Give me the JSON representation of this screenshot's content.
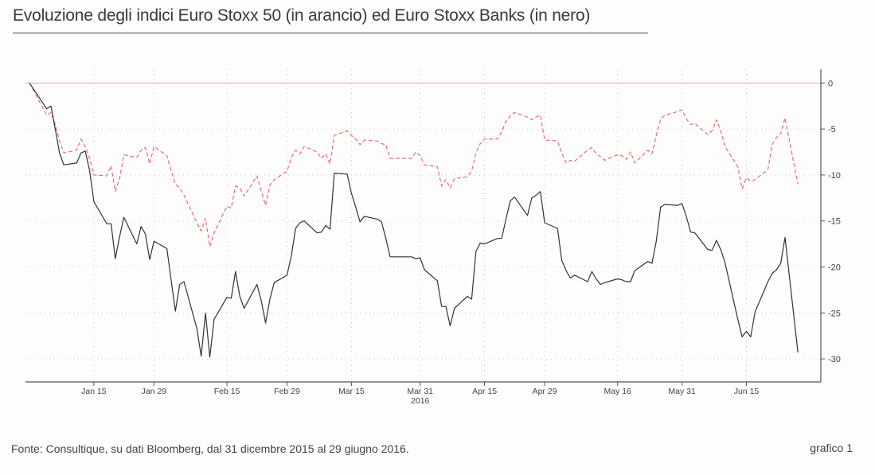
{
  "title": "Evoluzione degli indici Euro Stoxx 50 (in arancio) ed Euro Stoxx Banks (in nero)",
  "source": "Fonte: Consultique, su dati Bloomberg, dal 31 dicembre 2015 al 29 giugno 2016.",
  "figure_number": "grafico 1",
  "colors": {
    "stoxx50": "#e8607a",
    "banks": "#333333",
    "axis": "#555555",
    "grid": "#bbbbbb"
  },
  "chart_data": {
    "type": "line",
    "title": "Evoluzione degli indici Euro Stoxx 50 (in arancio) ed Euro Stoxx Banks (in nero)",
    "x_ticks": [
      "Jan 15",
      "Jan 29",
      "Feb 15",
      "Feb 29",
      "Mar 15",
      "Mar 31",
      "Apr 15",
      "Apr 29",
      "May 16",
      "May 31",
      "Jun 15"
    ],
    "x_year_label": "2016",
    "y_ticks": [
      0,
      -5,
      -10,
      -15,
      -20,
      -25,
      -30
    ],
    "ylim": [
      -32.5,
      1.5
    ],
    "y_axis_side": "right",
    "grid": true,
    "x_range": [
      "2015-12-31",
      "2016-06-29"
    ],
    "series": [
      {
        "key": "stoxx50",
        "line_style": "dashed",
        "points": [
          [
            "2015-12-31",
            0
          ],
          [
            "2016-01-04",
            -3.5
          ],
          [
            "2016-01-05",
            -3.2
          ],
          [
            "2016-01-06",
            -4.5
          ],
          [
            "2016-01-07",
            -6.3
          ],
          [
            "2016-01-08",
            -7.6
          ],
          [
            "2016-01-11",
            -7.3
          ],
          [
            "2016-01-12",
            -6.1
          ],
          [
            "2016-01-13",
            -6.9
          ],
          [
            "2016-01-14",
            -8.2
          ],
          [
            "2016-01-15",
            -10.0
          ],
          [
            "2016-01-18",
            -10.1
          ],
          [
            "2016-01-19",
            -9.0
          ],
          [
            "2016-01-20",
            -11.8
          ],
          [
            "2016-01-21",
            -10.4
          ],
          [
            "2016-01-22",
            -7.8
          ],
          [
            "2016-01-25",
            -8.1
          ],
          [
            "2016-01-26",
            -7.3
          ],
          [
            "2016-01-27",
            -7.0
          ],
          [
            "2016-01-28",
            -8.8
          ],
          [
            "2016-01-29",
            -6.9
          ],
          [
            "2016-02-01",
            -7.9
          ],
          [
            "2016-02-02",
            -9.5
          ],
          [
            "2016-02-03",
            -11.0
          ],
          [
            "2016-02-04",
            -11.4
          ],
          [
            "2016-02-05",
            -12.2
          ],
          [
            "2016-02-08",
            -15.2
          ],
          [
            "2016-02-09",
            -16.1
          ],
          [
            "2016-02-10",
            -14.7
          ],
          [
            "2016-02-11",
            -17.8
          ],
          [
            "2016-02-12",
            -16.3
          ],
          [
            "2016-02-15",
            -13.4
          ],
          [
            "2016-02-16",
            -13.6
          ],
          [
            "2016-02-17",
            -11.2
          ],
          [
            "2016-02-18",
            -11.4
          ],
          [
            "2016-02-19",
            -12.3
          ],
          [
            "2016-02-22",
            -10.1
          ],
          [
            "2016-02-23",
            -11.8
          ],
          [
            "2016-02-24",
            -13.3
          ],
          [
            "2016-02-25",
            -11.1
          ],
          [
            "2016-02-26",
            -10.5
          ],
          [
            "2016-02-29",
            -9.6
          ],
          [
            "2016-03-01",
            -8.1
          ],
          [
            "2016-03-02",
            -7.3
          ],
          [
            "2016-03-03",
            -7.7
          ],
          [
            "2016-03-04",
            -6.9
          ],
          [
            "2016-03-07",
            -7.5
          ],
          [
            "2016-03-08",
            -8.2
          ],
          [
            "2016-03-09",
            -7.7
          ],
          [
            "2016-03-10",
            -8.8
          ],
          [
            "2016-03-11",
            -5.7
          ],
          [
            "2016-03-14",
            -5.2
          ],
          [
            "2016-03-15",
            -5.7
          ],
          [
            "2016-03-16",
            -6.1
          ],
          [
            "2016-03-17",
            -6.7
          ],
          [
            "2016-03-18",
            -6.2
          ],
          [
            "2016-03-21",
            -6.3
          ],
          [
            "2016-03-22",
            -6.6
          ],
          [
            "2016-03-23",
            -6.7
          ],
          [
            "2016-03-24",
            -8.2
          ],
          [
            "2016-03-29",
            -8.2
          ],
          [
            "2016-03-30",
            -7.5
          ],
          [
            "2016-03-31",
            -7.9
          ],
          [
            "2016-04-01",
            -8.9
          ],
          [
            "2016-04-04",
            -9.1
          ],
          [
            "2016-04-05",
            -11.2
          ],
          [
            "2016-04-06",
            -10.5
          ],
          [
            "2016-04-07",
            -11.4
          ],
          [
            "2016-04-08",
            -10.4
          ],
          [
            "2016-04-11",
            -10.2
          ],
          [
            "2016-04-12",
            -9.6
          ],
          [
            "2016-04-13",
            -7.6
          ],
          [
            "2016-04-14",
            -6.6
          ],
          [
            "2016-04-15",
            -6.1
          ],
          [
            "2016-04-18",
            -6.1
          ],
          [
            "2016-04-19",
            -5.3
          ],
          [
            "2016-04-20",
            -4.2
          ],
          [
            "2016-04-21",
            -3.6
          ],
          [
            "2016-04-22",
            -3.2
          ],
          [
            "2016-04-25",
            -3.7
          ],
          [
            "2016-04-26",
            -4.0
          ],
          [
            "2016-04-27",
            -3.7
          ],
          [
            "2016-04-28",
            -3.5
          ],
          [
            "2016-04-29",
            -6.2
          ],
          [
            "2016-05-02",
            -6.3
          ],
          [
            "2016-05-03",
            -7.6
          ],
          [
            "2016-05-04",
            -8.7
          ],
          [
            "2016-05-05",
            -8.4
          ],
          [
            "2016-05-06",
            -8.5
          ],
          [
            "2016-05-09",
            -7.3
          ],
          [
            "2016-05-10",
            -7.0
          ],
          [
            "2016-05-11",
            -7.7
          ],
          [
            "2016-05-12",
            -8.0
          ],
          [
            "2016-05-13",
            -8.4
          ],
          [
            "2016-05-16",
            -7.8
          ],
          [
            "2016-05-17",
            -7.9
          ],
          [
            "2016-05-18",
            -8.3
          ],
          [
            "2016-05-19",
            -7.5
          ],
          [
            "2016-05-20",
            -8.7
          ],
          [
            "2016-05-23",
            -7.3
          ],
          [
            "2016-05-24",
            -7.7
          ],
          [
            "2016-05-25",
            -5.7
          ],
          [
            "2016-05-26",
            -3.9
          ],
          [
            "2016-05-27",
            -3.5
          ],
          [
            "2016-05-30",
            -3.1
          ],
          [
            "2016-05-31",
            -2.9
          ],
          [
            "2016-06-01",
            -3.9
          ],
          [
            "2016-06-02",
            -4.5
          ],
          [
            "2016-06-03",
            -4.4
          ],
          [
            "2016-06-06",
            -5.6
          ],
          [
            "2016-06-07",
            -5.2
          ],
          [
            "2016-06-08",
            -4.0
          ],
          [
            "2016-06-09",
            -5.2
          ],
          [
            "2016-06-10",
            -6.9
          ],
          [
            "2016-06-13",
            -9.1
          ],
          [
            "2016-06-14",
            -11.5
          ],
          [
            "2016-06-15",
            -10.3
          ],
          [
            "2016-06-16",
            -10.7
          ],
          [
            "2016-06-17",
            -10.5
          ],
          [
            "2016-06-20",
            -9.4
          ],
          [
            "2016-06-21",
            -6.7
          ],
          [
            "2016-06-22",
            -5.9
          ],
          [
            "2016-06-23",
            -5.5
          ],
          [
            "2016-06-24",
            -3.8
          ],
          [
            "2016-06-27",
            -11.0
          ]
        ]
      },
      {
        "key": "banks",
        "line_style": "solid",
        "points": [
          [
            "2015-12-31",
            0
          ],
          [
            "2016-01-04",
            -2.8
          ],
          [
            "2016-01-05",
            -2.5
          ],
          [
            "2016-01-06",
            -5.0
          ],
          [
            "2016-01-07",
            -7.6
          ],
          [
            "2016-01-08",
            -8.9
          ],
          [
            "2016-01-11",
            -8.7
          ],
          [
            "2016-01-12",
            -7.6
          ],
          [
            "2016-01-13",
            -7.4
          ],
          [
            "2016-01-14",
            -9.5
          ],
          [
            "2016-01-15",
            -12.9
          ],
          [
            "2016-01-18",
            -15.3
          ],
          [
            "2016-01-19",
            -15.3
          ],
          [
            "2016-01-20",
            -19.1
          ],
          [
            "2016-01-21",
            -16.7
          ],
          [
            "2016-01-22",
            -14.6
          ],
          [
            "2016-01-25",
            -17.5
          ],
          [
            "2016-01-26",
            -15.6
          ],
          [
            "2016-01-27",
            -16.4
          ],
          [
            "2016-01-28",
            -19.2
          ],
          [
            "2016-01-29",
            -17.2
          ],
          [
            "2016-02-01",
            -18.0
          ],
          [
            "2016-02-02",
            -21.4
          ],
          [
            "2016-02-03",
            -24.8
          ],
          [
            "2016-02-04",
            -21.9
          ],
          [
            "2016-02-05",
            -21.6
          ],
          [
            "2016-02-08",
            -26.7
          ],
          [
            "2016-02-09",
            -29.7
          ],
          [
            "2016-02-10",
            -25.0
          ],
          [
            "2016-02-11",
            -29.8
          ],
          [
            "2016-02-12",
            -25.7
          ],
          [
            "2016-02-15",
            -23.3
          ],
          [
            "2016-02-16",
            -23.4
          ],
          [
            "2016-02-17",
            -20.5
          ],
          [
            "2016-02-18",
            -23.2
          ],
          [
            "2016-02-19",
            -24.5
          ],
          [
            "2016-02-22",
            -21.9
          ],
          [
            "2016-02-23",
            -23.7
          ],
          [
            "2016-02-24",
            -26.1
          ],
          [
            "2016-02-25",
            -23.5
          ],
          [
            "2016-02-26",
            -21.7
          ],
          [
            "2016-02-29",
            -20.9
          ],
          [
            "2016-03-01",
            -18.8
          ],
          [
            "2016-03-02",
            -15.8
          ],
          [
            "2016-03-03",
            -15.2
          ],
          [
            "2016-03-04",
            -15.0
          ],
          [
            "2016-03-07",
            -16.3
          ],
          [
            "2016-03-08",
            -16.2
          ],
          [
            "2016-03-09",
            -15.5
          ],
          [
            "2016-03-10",
            -15.9
          ],
          [
            "2016-03-11",
            -9.8
          ],
          [
            "2016-03-14",
            -9.9
          ],
          [
            "2016-03-15",
            -12.0
          ],
          [
            "2016-03-16",
            -13.5
          ],
          [
            "2016-03-17",
            -15.1
          ],
          [
            "2016-03-18",
            -14.5
          ],
          [
            "2016-03-21",
            -14.8
          ],
          [
            "2016-03-22",
            -15.1
          ],
          [
            "2016-03-23",
            -16.9
          ],
          [
            "2016-03-24",
            -18.9
          ],
          [
            "2016-03-29",
            -18.9
          ],
          [
            "2016-03-30",
            -19.1
          ],
          [
            "2016-03-31",
            -19.0
          ],
          [
            "2016-04-01",
            -20.3
          ],
          [
            "2016-04-04",
            -21.5
          ],
          [
            "2016-04-05",
            -24.3
          ],
          [
            "2016-04-06",
            -24.3
          ],
          [
            "2016-04-07",
            -26.4
          ],
          [
            "2016-04-08",
            -24.5
          ],
          [
            "2016-04-11",
            -23.2
          ],
          [
            "2016-04-12",
            -23.5
          ],
          [
            "2016-04-13",
            -18.3
          ],
          [
            "2016-04-14",
            -17.4
          ],
          [
            "2016-04-15",
            -17.5
          ],
          [
            "2016-04-18",
            -16.9
          ],
          [
            "2016-04-19",
            -16.9
          ],
          [
            "2016-04-20",
            -14.8
          ],
          [
            "2016-04-21",
            -12.8
          ],
          [
            "2016-04-22",
            -12.4
          ],
          [
            "2016-04-25",
            -14.4
          ],
          [
            "2016-04-26",
            -12.5
          ],
          [
            "2016-04-27",
            -12.2
          ],
          [
            "2016-04-28",
            -11.8
          ],
          [
            "2016-04-29",
            -15.2
          ],
          [
            "2016-05-02",
            -15.8
          ],
          [
            "2016-05-03",
            -19.3
          ],
          [
            "2016-05-04",
            -20.4
          ],
          [
            "2016-05-05",
            -21.2
          ],
          [
            "2016-05-06",
            -20.9
          ],
          [
            "2016-05-09",
            -21.6
          ],
          [
            "2016-05-10",
            -20.5
          ],
          [
            "2016-05-11",
            -21.3
          ],
          [
            "2016-05-12",
            -21.9
          ],
          [
            "2016-05-13",
            -21.7
          ],
          [
            "2016-05-16",
            -21.3
          ],
          [
            "2016-05-17",
            -21.4
          ],
          [
            "2016-05-18",
            -21.6
          ],
          [
            "2016-05-19",
            -21.6
          ],
          [
            "2016-05-20",
            -20.4
          ],
          [
            "2016-05-23",
            -19.4
          ],
          [
            "2016-05-24",
            -19.6
          ],
          [
            "2016-05-25",
            -17.2
          ],
          [
            "2016-05-26",
            -13.5
          ],
          [
            "2016-05-27",
            -13.2
          ],
          [
            "2016-05-30",
            -13.3
          ],
          [
            "2016-05-31",
            -13.1
          ],
          [
            "2016-06-01",
            -14.5
          ],
          [
            "2016-06-02",
            -16.2
          ],
          [
            "2016-06-03",
            -16.3
          ],
          [
            "2016-06-06",
            -18.1
          ],
          [
            "2016-06-07",
            -18.2
          ],
          [
            "2016-06-08",
            -17.1
          ],
          [
            "2016-06-09",
            -18.1
          ],
          [
            "2016-06-10",
            -19.5
          ],
          [
            "2016-06-13",
            -25.7
          ],
          [
            "2016-06-14",
            -27.6
          ],
          [
            "2016-06-15",
            -27.0
          ],
          [
            "2016-06-16",
            -27.6
          ],
          [
            "2016-06-17",
            -24.9
          ],
          [
            "2016-06-20",
            -21.6
          ],
          [
            "2016-06-21",
            -20.7
          ],
          [
            "2016-06-22",
            -20.3
          ],
          [
            "2016-06-23",
            -19.6
          ],
          [
            "2016-06-24",
            -16.8
          ],
          [
            "2016-06-27",
            -29.3
          ]
        ]
      }
    ]
  }
}
